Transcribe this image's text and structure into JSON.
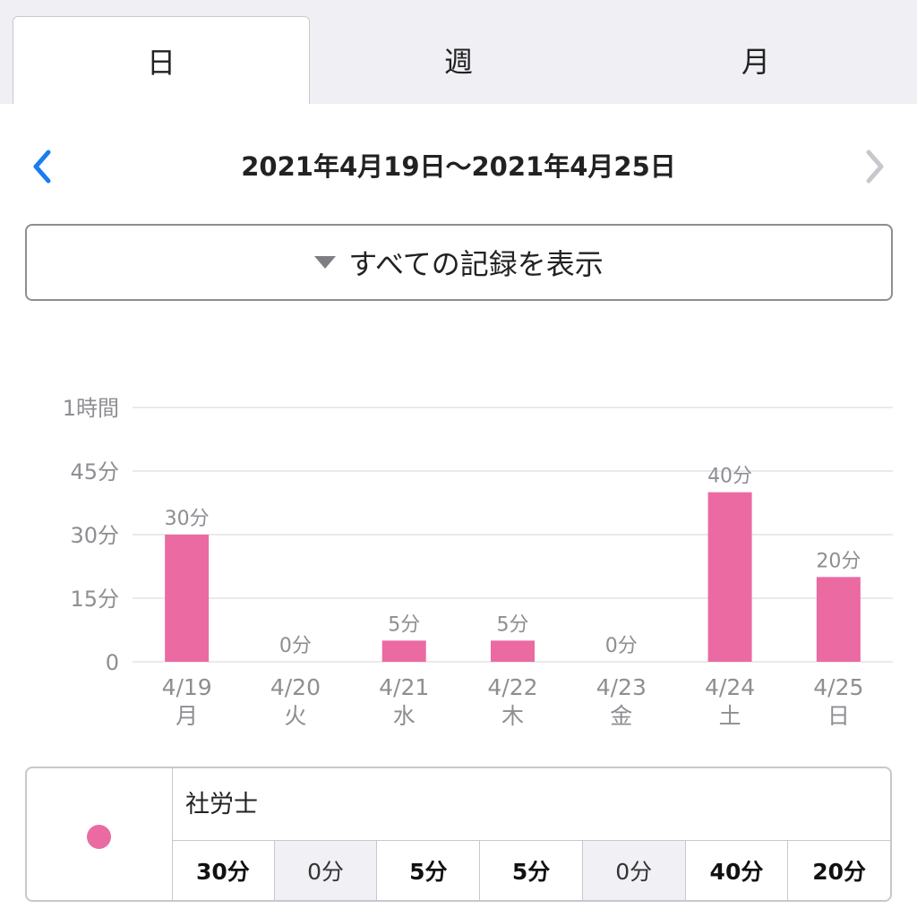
{
  "tabs": [
    {
      "label": "日",
      "active": true
    },
    {
      "label": "週",
      "active": false
    },
    {
      "label": "月",
      "active": false
    }
  ],
  "range": {
    "title": "2021年4月19日〜2021年4月25日"
  },
  "filter": {
    "label": "すべての記録を表示"
  },
  "chart_data": {
    "type": "bar",
    "categories": [
      "4/19",
      "4/20",
      "4/21",
      "4/22",
      "4/23",
      "4/24",
      "4/25"
    ],
    "weekdays": [
      "月",
      "火",
      "水",
      "木",
      "金",
      "土",
      "日"
    ],
    "values": [
      30,
      0,
      5,
      5,
      0,
      40,
      20
    ],
    "data_labels": [
      "30分",
      "0分",
      "5分",
      "5分",
      "0分",
      "40分",
      "20分"
    ],
    "y_ticks": [
      0,
      15,
      30,
      45,
      60
    ],
    "y_tick_labels": [
      "0",
      "15分",
      "30分",
      "45分",
      "1時間"
    ],
    "ylim": [
      0,
      60
    ],
    "grid": true,
    "bar_color": "#eb6aa2"
  },
  "legend": {
    "name": "社労士",
    "color": "#eb6aa2",
    "values": [
      "30分",
      "0分",
      "5分",
      "5分",
      "0分",
      "40分",
      "20分"
    ]
  },
  "colors": {
    "accent": "#1a7cf2",
    "disabled": "#c7c7cc"
  }
}
